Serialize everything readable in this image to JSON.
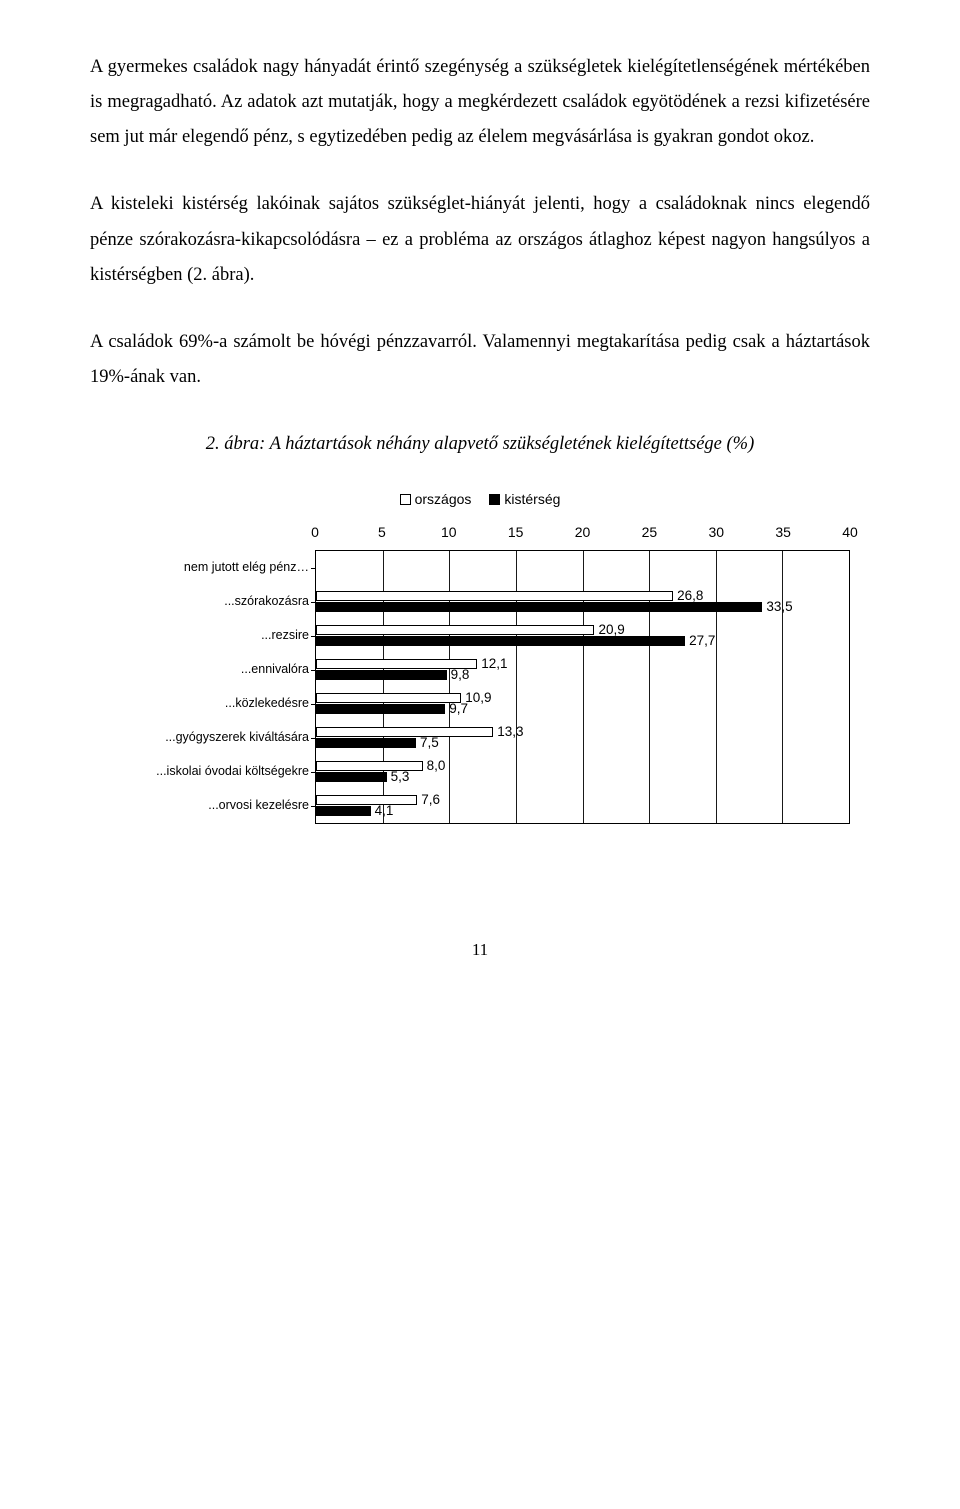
{
  "paragraphs": {
    "p1": "A gyermekes családok nagy hányadát érintő szegénység a szükségletek kielégítetlenségének mértékében is megragadható. Az adatok azt mutatják, hogy a megkérdezett családok egyötödének a rezsi kifizetésére sem jut már elegendő pénz, s egytizedében pedig az élelem megvásárlása is gyakran gondot okoz.",
    "p2": "A kisteleki kistérség lakóinak sajátos szükséglet-hiányát jelenti, hogy a családoknak nincs elegendő pénze szórakozásra-kikapcsolódásra – ez a probléma az országos átlaghoz képest nagyon hangsúlyos a kistérségben (2. ábra).",
    "p3": "A családok 69%-a számolt be hóvégi pénzzavarról. Valamennyi megtakarítása pedig csak a háztartások 19%-ának van."
  },
  "caption": "2. ábra: A háztartások néhány alapvető szükségletének kielégítettsége (%)",
  "chart": {
    "type": "grouped-horizontal-bar",
    "legend": {
      "series1": {
        "label": "országos",
        "color": "#ffffff",
        "border": "#000000"
      },
      "series2": {
        "label": "kistérség",
        "color": "#000000",
        "border": "#000000"
      }
    },
    "xmin": 0,
    "xmax": 40,
    "xtick_step": 5,
    "xticks": [
      "0",
      "5",
      "10",
      "15",
      "20",
      "25",
      "30",
      "35",
      "40"
    ],
    "categories": [
      {
        "label": "nem jutott elég pénz…",
        "orszagos": null,
        "kisterseg": null
      },
      {
        "label": "...szórakozásra",
        "orszagos": 26.8,
        "kisterseg": 33.5
      },
      {
        "label": "...rezsire",
        "orszagos": 20.9,
        "kisterseg": 27.7
      },
      {
        "label": "...ennivalóra",
        "orszagos": 12.1,
        "kisterseg": 9.8
      },
      {
        "label": "...közlekedésre",
        "orszagos": 10.9,
        "kisterseg": 9.7
      },
      {
        "label": "...gyógyszerek kiváltására",
        "orszagos": 13.3,
        "kisterseg": 7.5
      },
      {
        "label": "...iskolai óvodai költségekre",
        "orszagos": 8.0,
        "kisterseg": 5.3
      },
      {
        "label": "...orvosi kezelésre",
        "orszagos": 7.6,
        "kisterseg": 4.1
      }
    ],
    "background_color": "#ffffff",
    "axis_color": "#000000",
    "label_fontsize": 13
  },
  "page_number": "11"
}
